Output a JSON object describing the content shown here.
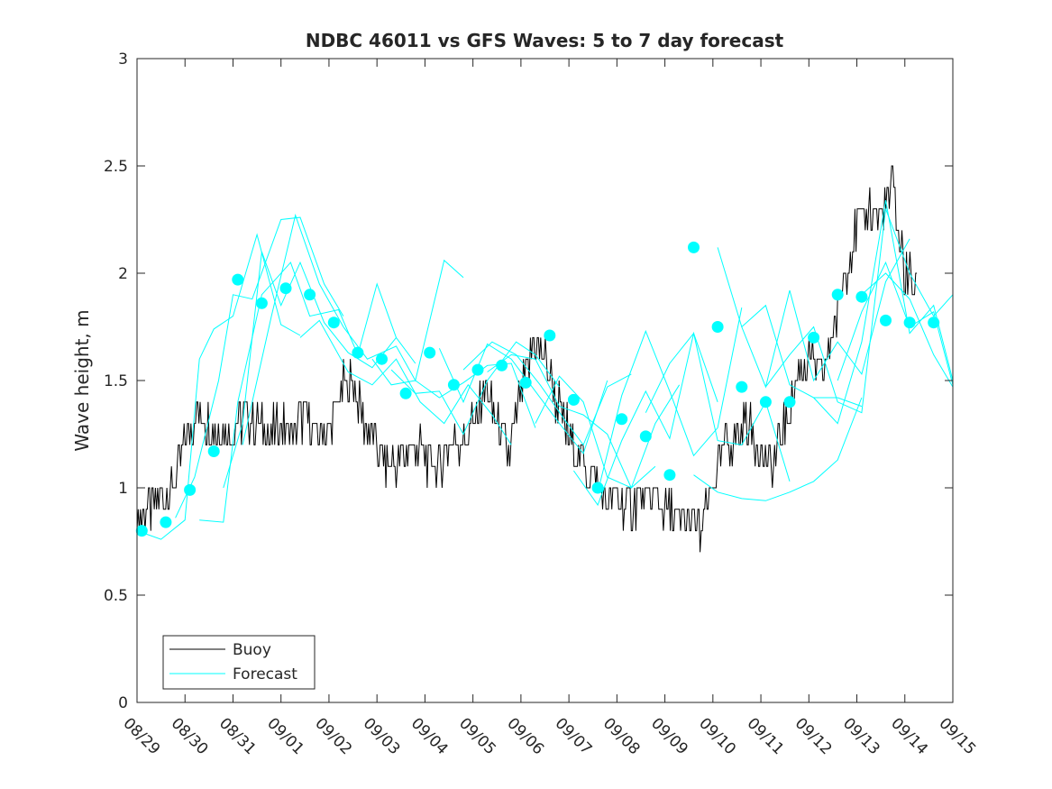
{
  "chart_data": {
    "type": "line",
    "title": "NDBC 46011 vs GFS Waves: 5 to 7 day forecast",
    "xlabel": "",
    "ylabel": "Wave height, m",
    "xlim": [
      0,
      17
    ],
    "ylim": [
      0,
      3
    ],
    "x_tick_labels": [
      "08/29",
      "08/30",
      "08/31",
      "09/01",
      "09/02",
      "09/03",
      "09/04",
      "09/05",
      "09/06",
      "09/07",
      "09/08",
      "09/09",
      "09/10",
      "09/11",
      "09/12",
      "09/13",
      "09/14",
      "09/15"
    ],
    "y_ticks": [
      0,
      0.5,
      1,
      1.5,
      2,
      2.5,
      3
    ],
    "y_tick_labels": [
      "0",
      "0.5",
      "1",
      "1.5",
      "2",
      "2.5",
      "3"
    ],
    "legend": {
      "location": "bottom-left",
      "entries": [
        "Buoy",
        "Forecast"
      ]
    },
    "colors": {
      "buoy": "#000000",
      "forecast": "#00ffff",
      "axes": "#262626"
    },
    "buoy": {
      "name": "Buoy",
      "x": [
        0,
        0.25,
        0.5,
        0.75,
        1,
        1.25,
        1.5,
        1.75,
        2,
        2.25,
        2.5,
        2.75,
        3,
        3.25,
        3.5,
        3.75,
        4,
        4.25,
        4.5,
        4.75,
        5,
        5.25,
        5.5,
        5.75,
        6,
        6.25,
        6.5,
        6.75,
        7,
        7.25,
        7.5,
        7.75,
        8,
        8.25,
        8.5,
        8.75,
        9,
        9.25,
        9.5,
        9.75,
        10,
        10.25,
        10.5,
        10.75,
        11,
        11.25,
        11.5,
        11.75,
        12,
        12.25,
        12.5,
        12.75,
        13,
        13.25,
        13.5,
        13.75,
        14,
        14.25,
        14.5,
        14.75,
        15,
        15.25,
        15.5,
        15.75,
        16,
        16.25
      ],
      "values": [
        0.85,
        0.9,
        0.95,
        1.0,
        1.2,
        1.35,
        1.3,
        1.25,
        1.25,
        1.35,
        1.3,
        1.25,
        1.3,
        1.25,
        1.35,
        1.25,
        1.25,
        1.45,
        1.5,
        1.3,
        1.2,
        1.1,
        1.15,
        1.2,
        1.15,
        1.1,
        1.2,
        1.2,
        1.3,
        1.45,
        1.3,
        1.15,
        1.45,
        1.65,
        1.6,
        1.4,
        1.25,
        1.15,
        1.05,
        0.95,
        0.95,
        0.9,
        0.95,
        0.95,
        0.9,
        0.85,
        0.85,
        0.8,
        1.0,
        1.2,
        1.25,
        1.3,
        1.15,
        1.1,
        1.3,
        1.5,
        1.6,
        1.5,
        1.7,
        2.0,
        2.2,
        2.3,
        2.25,
        2.4,
        2.0,
        1.95
      ]
    },
    "forecast_points": {
      "name": "Forecast",
      "x": [
        0.1,
        0.6,
        1.1,
        1.6,
        2.1,
        2.6,
        3.1,
        3.6,
        4.1,
        4.6,
        5.1,
        5.6,
        6.1,
        6.6,
        7.1,
        7.6,
        8.1,
        8.6,
        9.1,
        9.6,
        10.1,
        10.6,
        11.1,
        11.6,
        12.1,
        12.6,
        13.1,
        13.6,
        14.1,
        14.6,
        15.1,
        15.6,
        16.1,
        16.6
      ],
      "values": [
        0.8,
        0.84,
        0.99,
        1.17,
        1.97,
        1.86,
        1.93,
        1.9,
        1.77,
        1.63,
        1.6,
        1.44,
        1.63,
        1.48,
        1.55,
        1.57,
        1.49,
        1.71,
        1.41,
        1.0,
        1.32,
        1.24,
        1.06,
        2.12,
        1.75,
        1.47,
        1.4,
        1.4,
        1.7,
        1.9,
        1.89,
        1.78,
        1.77,
        1.77
      ]
    },
    "forecast_runs": [
      {
        "x": [
          0,
          0.5,
          1,
          1.3,
          1.6,
          2,
          2.5,
          3,
          3.4
        ],
        "values": [
          0.8,
          0.76,
          0.85,
          1.6,
          1.74,
          1.8,
          2.18,
          1.76,
          1.71
        ]
      },
      {
        "x": [
          0.8,
          1.2,
          1.7,
          2,
          2.4,
          3,
          3.4,
          3.9,
          4.3
        ],
        "values": [
          0.86,
          1.05,
          1.5,
          1.9,
          1.88,
          2.25,
          2.26,
          1.95,
          1.8
        ]
      },
      {
        "x": [
          1.3,
          1.8,
          2.1,
          2.6,
          3.2,
          3.6,
          4.2,
          4.6,
          5,
          5.4
        ],
        "values": [
          0.85,
          0.84,
          1.4,
          1.9,
          2.05,
          1.8,
          1.83,
          1.62,
          1.95,
          1.7
        ]
      },
      {
        "x": [
          1.8,
          2.2,
          2.6,
          3,
          3.4,
          3.9,
          4.4,
          4.9,
          5.4,
          5.8
        ],
        "values": [
          1.0,
          1.3,
          2.1,
          1.85,
          2.05,
          1.77,
          1.63,
          1.56,
          1.7,
          1.58
        ]
      },
      {
        "x": [
          2.2,
          2.8,
          3.3,
          3.8,
          4.3,
          4.8,
          5.4,
          5.8,
          6.4,
          6.8
        ],
        "values": [
          1.2,
          1.8,
          2.27,
          1.95,
          1.75,
          1.6,
          1.66,
          1.5,
          2.06,
          1.98
        ]
      },
      {
        "x": [
          3.4,
          3.8,
          4.4,
          4.9,
          5.4,
          5.9,
          6.4,
          6.9,
          7.4,
          7.8
        ],
        "values": [
          1.7,
          1.78,
          1.54,
          1.48,
          1.6,
          1.4,
          1.3,
          1.48,
          1.34,
          1.2
        ]
      },
      {
        "x": [
          4.9,
          5.3,
          5.8,
          6.3,
          6.8,
          7.3,
          7.8,
          8.3
        ],
        "values": [
          1.6,
          1.48,
          1.5,
          1.42,
          1.49,
          1.57,
          1.58,
          1.28
        ]
      },
      {
        "x": [
          5.3,
          5.8,
          6.3,
          6.8,
          7.3,
          7.9,
          8.3,
          8.8
        ],
        "values": [
          1.55,
          1.44,
          1.45,
          1.25,
          1.5,
          1.68,
          1.62,
          1.47
        ]
      },
      {
        "x": [
          6.3,
          6.8,
          7.3,
          7.8,
          8.3,
          8.8,
          9.3,
          9.8
        ],
        "values": [
          1.65,
          1.4,
          1.67,
          1.6,
          1.45,
          1.3,
          1.16,
          1.5
        ]
      },
      {
        "x": [
          6.8,
          7.4,
          7.9,
          8.4,
          8.9,
          9.3,
          9.8,
          10.3
        ],
        "values": [
          1.55,
          1.68,
          1.62,
          1.48,
          1.32,
          1.2,
          1.47,
          1.53
        ]
      },
      {
        "x": [
          7.3,
          7.8,
          8.3,
          8.8,
          9.3,
          9.8,
          10.3,
          10.8
        ],
        "values": [
          1.54,
          1.62,
          1.6,
          1.38,
          1.34,
          1.25,
          1.0,
          1.1
        ]
      },
      {
        "x": [
          8.3,
          8.8,
          9.3,
          9.8,
          10.3,
          10.8,
          11.3
        ],
        "values": [
          1.3,
          1.52,
          1.4,
          1.05,
          1.0,
          1.3,
          1.48
        ]
      },
      {
        "x": [
          9.1,
          9.6,
          10.1,
          10.6,
          11.1,
          11.6,
          12.1
        ],
        "values": [
          1.08,
          0.92,
          1.22,
          1.45,
          1.23,
          1.72,
          1.4
        ]
      },
      {
        "x": [
          9.6,
          10.1,
          10.6,
          11.1,
          11.6,
          12.1,
          12.6
        ],
        "values": [
          0.98,
          1.43,
          1.73,
          1.45,
          1.15,
          1.28,
          1.84
        ]
      },
      {
        "x": [
          10.6,
          11.1,
          11.6,
          12.1,
          12.6,
          13.1,
          13.6
        ],
        "values": [
          1.35,
          1.58,
          1.72,
          1.22,
          1.2,
          1.4,
          1.03
        ]
      },
      {
        "x": [
          11.6,
          12.1,
          12.6,
          13.1,
          13.6,
          14.1,
          14.6,
          15.1
        ],
        "values": [
          1.06,
          0.98,
          0.95,
          0.94,
          0.98,
          1.03,
          1.13,
          1.42
        ]
      },
      {
        "x": [
          12.1,
          12.6,
          13.1,
          13.6,
          14.1,
          14.6,
          15.1
        ],
        "values": [
          2.12,
          1.75,
          1.85,
          1.48,
          1.42,
          1.42,
          1.38
        ]
      },
      {
        "x": [
          12.6,
          13.1,
          13.6,
          14.1,
          14.6,
          15.1,
          15.6,
          16.1
        ],
        "values": [
          1.75,
          1.47,
          1.92,
          1.5,
          1.68,
          1.53,
          1.96,
          2.16
        ]
      },
      {
        "x": [
          13.1,
          13.6,
          14.1,
          14.6,
          15.1,
          15.6,
          16.1,
          16.6,
          17
        ],
        "values": [
          1.47,
          1.62,
          1.75,
          1.4,
          1.35,
          2.3,
          2.0,
          1.8,
          1.9
        ]
      },
      {
        "x": [
          14.1,
          14.6,
          15.1,
          15.6,
          16.1,
          16.6,
          17
        ],
        "values": [
          1.42,
          1.3,
          1.68,
          2.34,
          1.72,
          1.85,
          1.5
        ]
      },
      {
        "x": [
          14.6,
          15.1,
          15.6,
          16.1,
          16.6,
          17
        ],
        "values": [
          1.5,
          1.82,
          2.05,
          1.75,
          1.82,
          1.48
        ]
      },
      {
        "x": [
          15.1,
          15.6,
          16.1,
          16.6,
          17
        ],
        "values": [
          1.9,
          2.0,
          1.88,
          1.62,
          1.47
        ]
      }
    ]
  }
}
